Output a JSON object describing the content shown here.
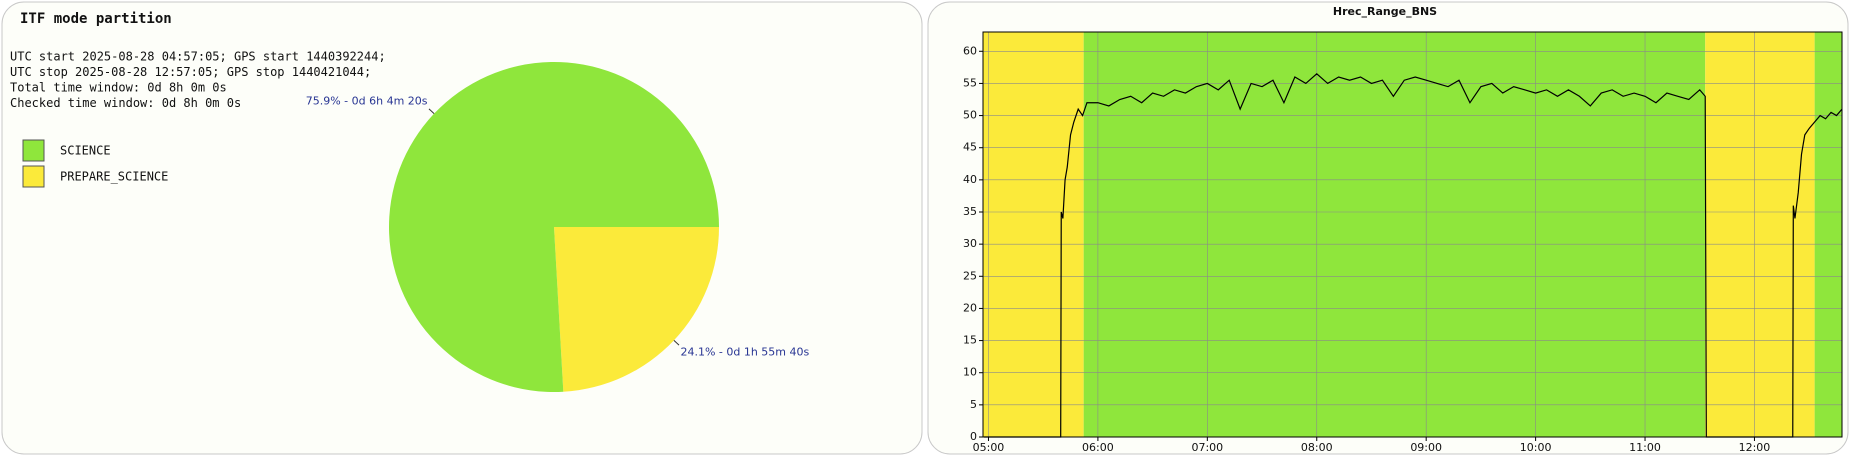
{
  "chart_data": [
    {
      "type": "pie",
      "title": "ITF mode partition",
      "annotations": [
        "UTC start 2025-08-28 04:57:05; GPS start 1440392244;",
        "UTC stop 2025-08-28 12:57:05; GPS stop 1440421044;",
        "Total time window: 0d 8h 0m 0s",
        "Checked time window: 0d 8h 0m 0s"
      ],
      "categories": [
        "SCIENCE",
        "PREPARE_SCIENCE"
      ],
      "values": [
        75.9,
        24.1
      ],
      "value_labels": [
        "75.9% - 0d 6h 4m 20s",
        "24.1% - 0d 1h 55m 40s"
      ],
      "colors": [
        "#8fe63c",
        "#fbea3a"
      ]
    },
    {
      "type": "line",
      "title": "Hrec_Range_BNS",
      "color": "#000000",
      "x": [
        4.96,
        5.66,
        5.665,
        5.68,
        5.7,
        5.72,
        5.75,
        5.78,
        5.82,
        5.86,
        5.9,
        6.0,
        6.1,
        6.2,
        6.3,
        6.4,
        6.5,
        6.6,
        6.7,
        6.8,
        6.9,
        7.0,
        7.1,
        7.2,
        7.3,
        7.4,
        7.5,
        7.6,
        7.7,
        7.8,
        7.9,
        8.0,
        8.1,
        8.2,
        8.3,
        8.4,
        8.5,
        8.6,
        8.7,
        8.8,
        8.9,
        9.0,
        9.1,
        9.2,
        9.3,
        9.4,
        9.5,
        9.6,
        9.7,
        9.8,
        9.9,
        10.0,
        10.1,
        10.2,
        10.3,
        10.4,
        10.5,
        10.6,
        10.7,
        10.8,
        10.9,
        11.0,
        11.1,
        11.2,
        11.3,
        11.4,
        11.5,
        11.55,
        11.56,
        12.35,
        12.355,
        12.37,
        12.4,
        12.43,
        12.46,
        12.5,
        12.55,
        12.6,
        12.65,
        12.7,
        12.75,
        12.8
      ],
      "values": [
        0,
        0,
        35,
        34,
        40,
        42,
        47,
        49,
        51,
        50,
        52,
        52,
        51.5,
        52.5,
        53,
        52,
        53.5,
        53,
        54,
        53.5,
        54.5,
        55,
        54,
        55.5,
        51,
        55,
        54.5,
        55.5,
        52,
        56,
        55,
        56.5,
        55,
        56,
        55.5,
        56,
        55,
        55.5,
        53,
        55.5,
        56,
        55.5,
        55,
        54.5,
        55.5,
        52,
        54.5,
        55,
        53.5,
        54.5,
        54,
        53.5,
        54,
        53,
        54,
        53,
        51.5,
        53.5,
        54,
        53,
        53.5,
        53,
        52,
        53.5,
        53,
        52.5,
        54,
        53,
        0,
        0,
        36,
        34,
        38,
        44,
        47,
        48,
        49,
        50,
        49.5,
        50.5,
        50,
        51
      ],
      "bands": {
        "start": [
          4.95,
          5.87,
          11.55,
          12.55
        ],
        "end": [
          5.87,
          11.55,
          12.55,
          12.8
        ],
        "colors": [
          "#fbea3a",
          "#8fe63c",
          "#fbea3a",
          "#8fe63c"
        ]
      },
      "xlim": [
        4.95,
        12.8
      ],
      "xticks": [
        {
          "value": 5,
          "label": "05:00"
        },
        {
          "value": 6,
          "label": "06:00"
        },
        {
          "value": 7,
          "label": "07:00"
        },
        {
          "value": 8,
          "label": "08:00"
        },
        {
          "value": 9,
          "label": "09:00"
        },
        {
          "value": 10,
          "label": "10:00"
        },
        {
          "value": 11,
          "label": "11:00"
        },
        {
          "value": 12,
          "label": "12:00"
        }
      ],
      "ylim": [
        0,
        63
      ],
      "yticks": [
        0,
        5,
        10,
        15,
        20,
        25,
        30,
        35,
        40,
        45,
        50,
        55,
        60
      ],
      "grid": true
    }
  ]
}
